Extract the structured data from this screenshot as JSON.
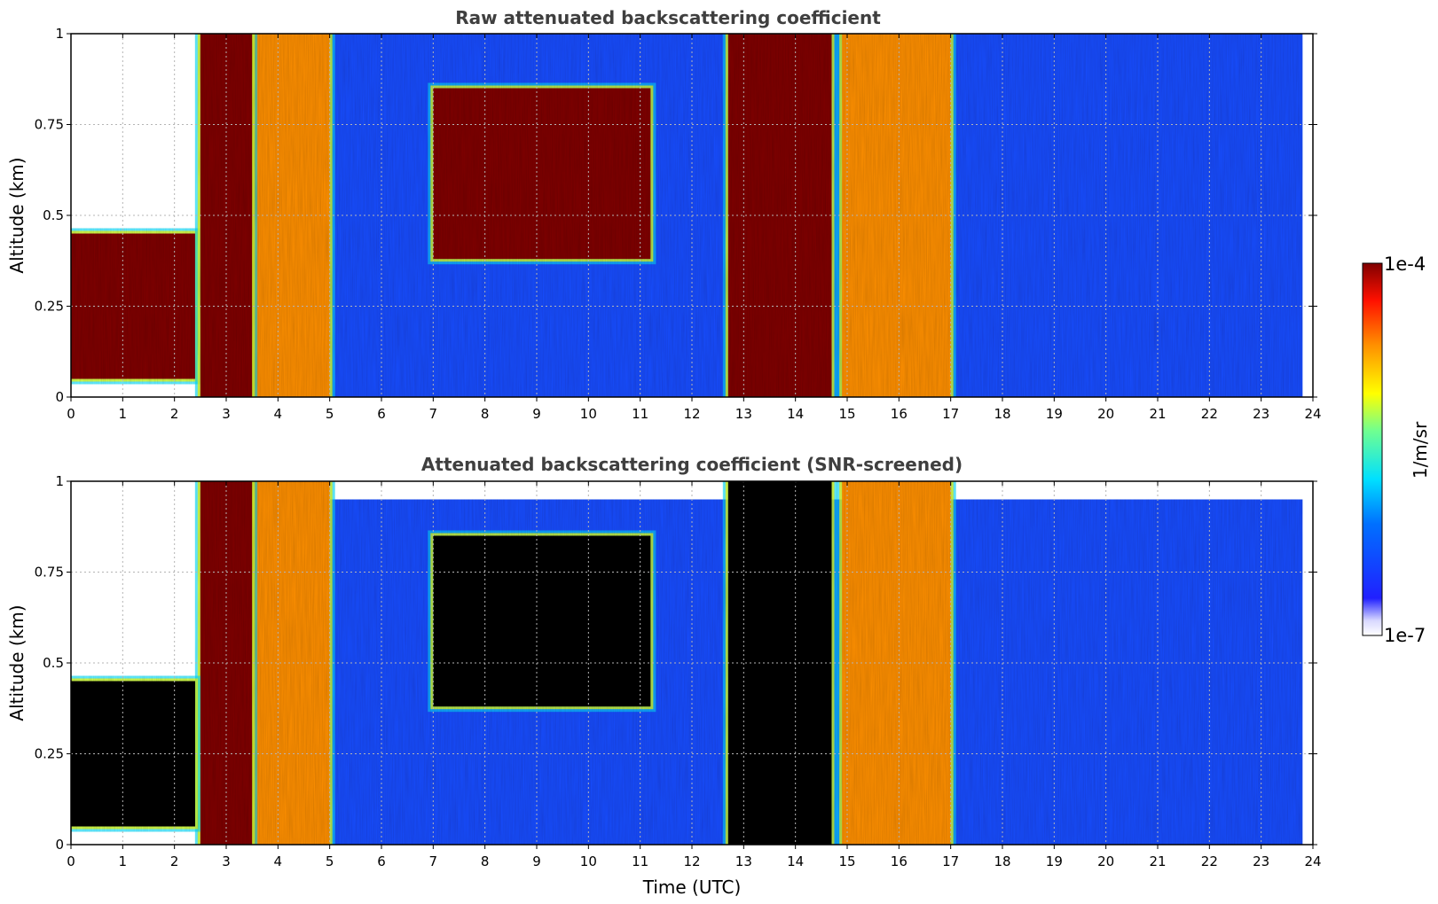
{
  "chart_data": [
    {
      "type": "heatmap",
      "title": "Raw attenuated backscattering coefficient",
      "xlabel": "",
      "ylabel": "Altitude (km)",
      "xlim": [
        0,
        24
      ],
      "ylim": [
        0,
        1
      ],
      "xticks": [
        "0",
        "1",
        "2",
        "3",
        "4",
        "5",
        "6",
        "7",
        "8",
        "9",
        "10",
        "11",
        "12",
        "13",
        "14",
        "15",
        "16",
        "17",
        "18",
        "19",
        "20",
        "21",
        "22",
        "23",
        "24"
      ],
      "yticks": [
        "0",
        "0.25",
        "0.5",
        "0.75",
        "1"
      ],
      "grid": true,
      "colorscale": "jet",
      "features": [
        {
          "x_range": [
            0.0,
            2.4
          ],
          "altitude_range": [
            0.05,
            0.45
          ],
          "level": "high"
        },
        {
          "x_range": [
            2.5,
            3.5
          ],
          "altitude_range": [
            0.0,
            1.0
          ],
          "level": "high"
        },
        {
          "x_range": [
            3.3,
            5.0
          ],
          "altitude_range": [
            0.0,
            1.0
          ],
          "level": "medium-high"
        },
        {
          "x_range": [
            7.0,
            11.2
          ],
          "altitude_range": [
            0.38,
            0.85
          ],
          "level": "high"
        },
        {
          "x_range": [
            12.7,
            14.7
          ],
          "altitude_range": [
            0.0,
            1.0
          ],
          "level": "high"
        },
        {
          "x_range": [
            14.9,
            17.0
          ],
          "altitude_range": [
            0.0,
            1.0
          ],
          "level": "medium-high"
        },
        {
          "x_range": [
            5.0,
            23.8
          ],
          "altitude_range": [
            0.0,
            1.0
          ],
          "level": "background"
        }
      ]
    },
    {
      "type": "heatmap",
      "title": "Attenuated backscattering coefficient (SNR-screened)",
      "xlabel": "Time (UTC)",
      "ylabel": "Altitude (km)",
      "xlim": [
        0,
        24
      ],
      "ylim": [
        0,
        1
      ],
      "xticks": [
        "0",
        "1",
        "2",
        "3",
        "4",
        "5",
        "6",
        "7",
        "8",
        "9",
        "10",
        "11",
        "12",
        "13",
        "14",
        "15",
        "16",
        "17",
        "18",
        "19",
        "20",
        "21",
        "22",
        "23",
        "24"
      ],
      "yticks": [
        "0",
        "0.25",
        "0.5",
        "0.75",
        "1"
      ],
      "grid": true,
      "colorscale": "jet",
      "features": [
        {
          "x_range": [
            0.0,
            2.4
          ],
          "altitude_range": [
            0.05,
            0.45
          ],
          "level": "saturated"
        },
        {
          "x_range": [
            2.5,
            3.5
          ],
          "altitude_range": [
            0.0,
            1.0
          ],
          "level": "high"
        },
        {
          "x_range": [
            3.3,
            5.0
          ],
          "altitude_range": [
            0.0,
            1.0
          ],
          "level": "medium-high"
        },
        {
          "x_range": [
            7.0,
            11.2
          ],
          "altitude_range": [
            0.38,
            0.85
          ],
          "level": "saturated"
        },
        {
          "x_range": [
            12.7,
            14.7
          ],
          "altitude_range": [
            0.0,
            1.0
          ],
          "level": "saturated"
        },
        {
          "x_range": [
            14.9,
            17.0
          ],
          "altitude_range": [
            0.0,
            1.0
          ],
          "level": "medium-high"
        },
        {
          "x_range": [
            5.0,
            23.8
          ],
          "altitude_range": [
            0.0,
            0.95
          ],
          "level": "background"
        }
      ]
    }
  ],
  "colorbar": {
    "max_label": "1e-4",
    "min_label": "1e-7",
    "unit_label": "1/m/sr",
    "scale": "log"
  },
  "colors": {
    "dark_red": "#800000",
    "red": "#ff2000",
    "orange": "#ff9000",
    "yellow": "#ffff00",
    "cyan": "#00e0ff",
    "blue": "#0040ff",
    "background_blue": "#1a4dff",
    "saturated": "#000000"
  }
}
